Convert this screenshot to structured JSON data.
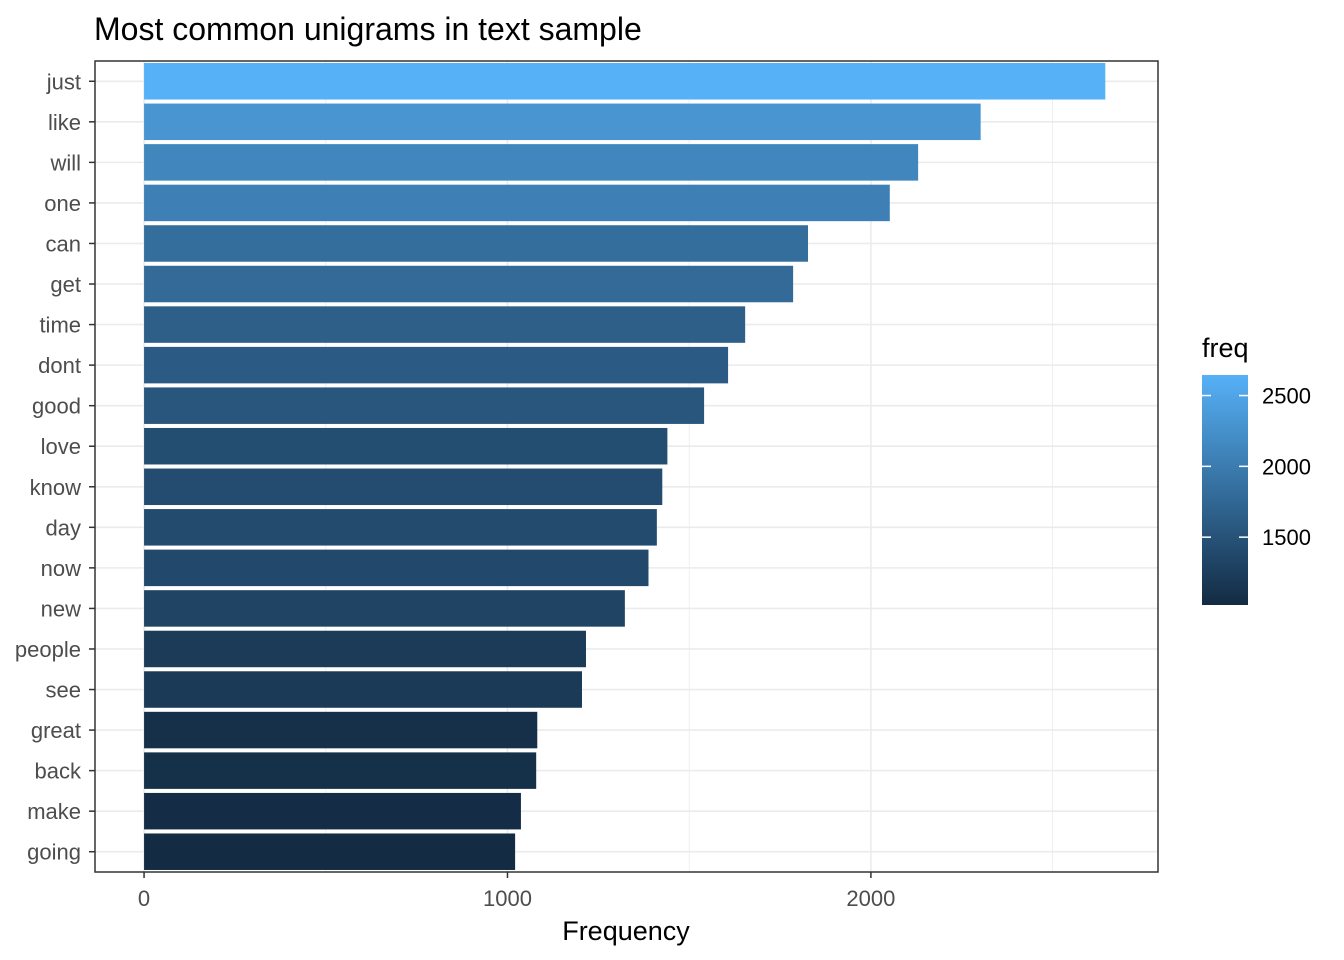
{
  "chart_data": {
    "type": "bar",
    "orientation": "horizontal",
    "title": "Most common unigrams in text sample",
    "xlabel": "Frequency",
    "ylabel": "",
    "categories": [
      "just",
      "like",
      "will",
      "one",
      "can",
      "get",
      "time",
      "dont",
      "good",
      "love",
      "know",
      "day",
      "now",
      "new",
      "people",
      "see",
      "great",
      "back",
      "make",
      "going"
    ],
    "values": [
      2645,
      2302,
      2130,
      2052,
      1827,
      1786,
      1654,
      1607,
      1541,
      1440,
      1426,
      1411,
      1388,
      1323,
      1216,
      1205,
      1082,
      1079,
      1037,
      1021
    ],
    "xlim": [
      -135,
      2790
    ],
    "x_ticks": [
      0,
      1000,
      2000
    ],
    "x_tick_labels": [
      "0",
      "1000",
      "2000"
    ],
    "grid": true,
    "legend": {
      "title": "freq",
      "position": "right",
      "type": "colorbar",
      "range": [
        1021,
        2645
      ],
      "ticks": [
        1500,
        2000,
        2500
      ],
      "tick_labels": [
        "1500",
        "2000",
        "2500"
      ],
      "low_color": "#132b43",
      "high_color": "#56b1f7"
    }
  }
}
